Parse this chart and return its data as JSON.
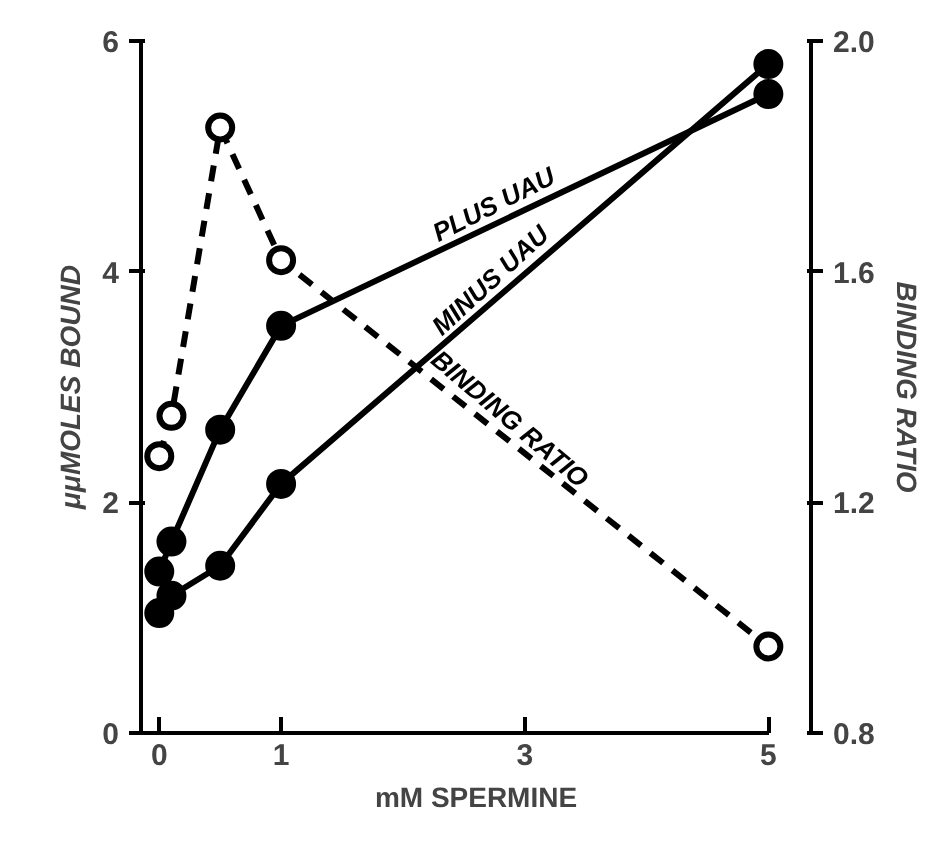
{
  "chart_data": {
    "type": "line",
    "xlabel": "mM SPERMINE",
    "ylabel": "μμMOLES BOUND",
    "y2label": "BINDING RATIO",
    "xlim": [
      -0.15,
      5.35
    ],
    "xticks": [
      0,
      1,
      3,
      5
    ],
    "ylim": [
      0,
      6
    ],
    "yticks": [
      0,
      2,
      4,
      6
    ],
    "y2lim": [
      0.8,
      2.0
    ],
    "y2ticks": [
      0.8,
      1.2,
      1.6,
      {
        "value": 2.0,
        "label": "2.0"
      }
    ],
    "grid": false,
    "series": [
      {
        "name": "PLUS UAU",
        "color": "#000000",
        "x": [
          0,
          0.1,
          0.5,
          1,
          5
        ],
        "values": [
          1.4,
          1.66,
          2.63,
          3.53,
          5.54
        ],
        "marker": "circle",
        "line_style": "solid"
      },
      {
        "name": "MINUS UAU",
        "color": "#000000",
        "x": [
          0,
          0.1,
          0.5,
          1,
          5
        ],
        "values": [
          1.04,
          1.19,
          1.45,
          2.16,
          5.8
        ],
        "marker": "circle",
        "line_style": "solid"
      },
      {
        "name": "BINDING RATIO",
        "color": "#000000",
        "x": [
          0,
          0.1,
          0.5,
          1,
          5
        ],
        "values": [
          1.28,
          1.35,
          1.85,
          1.62,
          0.95
        ],
        "axis": "y2",
        "marker": "open circle",
        "line_style": "dashed"
      }
    ]
  }
}
